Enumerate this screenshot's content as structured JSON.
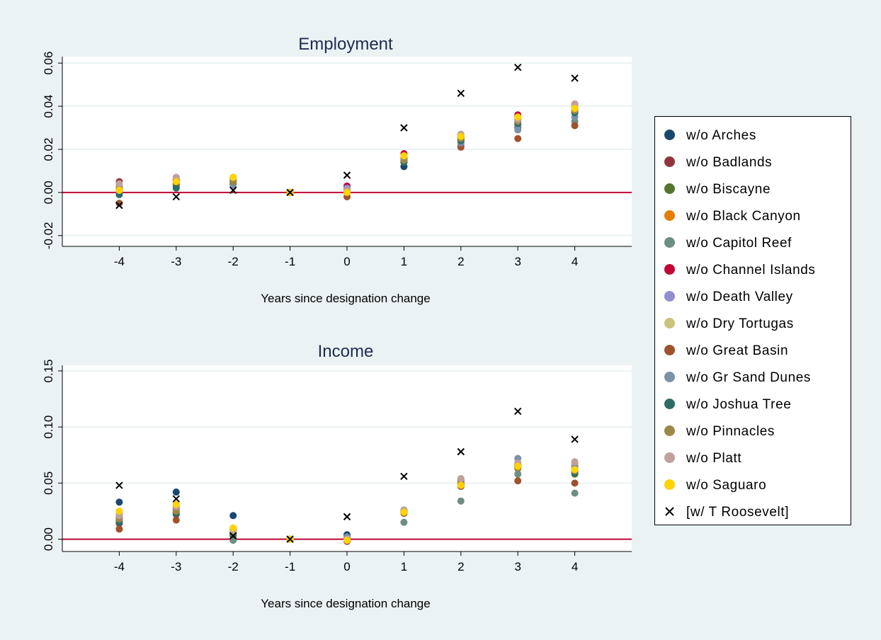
{
  "chart_data": [
    {
      "type": "scatter",
      "title": "Employment",
      "xlabel": "Years since designation change",
      "ylabel": "",
      "x": [
        -4,
        -3,
        -2,
        -1,
        0,
        1,
        2,
        3,
        4
      ],
      "xticks": [
        "-4",
        "-3",
        "-2",
        "-1",
        "0",
        "1",
        "2",
        "3",
        "4"
      ],
      "xlim": [
        -5,
        5
      ],
      "ylim": [
        -0.025,
        0.063
      ],
      "yticks": [
        "-0.02",
        "0.00",
        "0.02",
        "0.04",
        "0.06"
      ],
      "ytick_values": [
        -0.02,
        0,
        0.02,
        0.04,
        0.06
      ],
      "reference_line": 0,
      "grid": true,
      "series": [
        {
          "name": "w/o Arches",
          "values": [
            0.0,
            0.003,
            0.004,
            0.0,
            0.001,
            0.012,
            0.024,
            0.03,
            0.038
          ]
        },
        {
          "name": "w/o Badlands",
          "values": [
            0.005,
            0.006,
            0.005,
            0.0,
            0.002,
            0.016,
            0.025,
            0.031,
            0.04
          ]
        },
        {
          "name": "w/o Biscayne",
          "values": [
            0.001,
            0.004,
            0.004,
            0.0,
            0.0,
            0.014,
            0.024,
            0.032,
            0.037
          ]
        },
        {
          "name": "w/o Black Canyon",
          "values": [
            0.001,
            0.005,
            0.006,
            0.0,
            0.0,
            0.016,
            0.025,
            0.034,
            0.039
          ]
        },
        {
          "name": "w/o Capitol Reef",
          "values": [
            0.0,
            0.004,
            0.005,
            0.0,
            0.001,
            0.015,
            0.022,
            0.031,
            0.033
          ]
        },
        {
          "name": "w/o Channel Islands",
          "values": [
            0.003,
            0.006,
            0.006,
            0.0,
            0.003,
            0.018,
            0.026,
            0.036,
            0.041
          ]
        },
        {
          "name": "w/o Death Valley",
          "values": [
            0.004,
            0.007,
            0.006,
            0.0,
            0.002,
            0.016,
            0.026,
            0.035,
            0.041
          ]
        },
        {
          "name": "w/o Dry Tortugas",
          "values": [
            0.003,
            0.007,
            0.007,
            0.0,
            0.001,
            0.017,
            0.027,
            0.034,
            0.04
          ]
        },
        {
          "name": "w/o Great Basin",
          "values": [
            -0.005,
            0.004,
            0.004,
            0.0,
            -0.002,
            0.015,
            0.021,
            0.025,
            0.031
          ]
        },
        {
          "name": "w/o Gr Sand Dunes",
          "values": [
            0.002,
            0.005,
            0.003,
            0.0,
            0.001,
            0.015,
            0.023,
            0.029,
            0.035
          ]
        },
        {
          "name": "w/o Joshua Tree",
          "values": [
            -0.001,
            0.002,
            0.005,
            0.0,
            0.0,
            0.014,
            0.024,
            0.032,
            0.037
          ]
        },
        {
          "name": "w/o Pinnacles",
          "values": [
            0.002,
            0.005,
            0.005,
            0.0,
            0.0,
            0.015,
            0.025,
            0.033,
            0.038
          ]
        },
        {
          "name": "w/o Platt",
          "values": [
            0.004,
            0.007,
            0.007,
            0.0,
            0.001,
            0.017,
            0.027,
            0.034,
            0.041
          ]
        },
        {
          "name": "w/o Saguaro",
          "values": [
            0.001,
            0.005,
            0.007,
            0.0,
            0.0,
            0.017,
            0.026,
            0.035,
            0.039
          ]
        },
        {
          "name": "[w/ T Roosevelt]",
          "values": [
            -0.006,
            -0.002,
            0.001,
            0.0,
            0.008,
            0.03,
            0.046,
            0.058,
            0.053
          ]
        }
      ]
    },
    {
      "type": "scatter",
      "title": "Income",
      "xlabel": "Years since designation change",
      "ylabel": "",
      "x": [
        -4,
        -3,
        -2,
        -1,
        0,
        1,
        2,
        3,
        4
      ],
      "xticks": [
        "-4",
        "-3",
        "-2",
        "-1",
        "0",
        "1",
        "2",
        "3",
        "4"
      ],
      "xlim": [
        -5,
        5
      ],
      "ylim": [
        -0.011,
        0.155
      ],
      "yticks": [
        "0.00",
        "0.05",
        "0.10",
        "0.15"
      ],
      "ytick_values": [
        0,
        0.05,
        0.1,
        0.15
      ],
      "reference_line": 0,
      "grid": true,
      "series": [
        {
          "name": "w/o Arches",
          "values": [
            0.033,
            0.042,
            0.021,
            0.0,
            0.004,
            0.025,
            0.048,
            0.066,
            0.06
          ]
        },
        {
          "name": "w/o Badlands",
          "values": [
            0.014,
            0.022,
            0.006,
            0.0,
            0.0,
            0.025,
            0.053,
            0.064,
            0.066
          ]
        },
        {
          "name": "w/o Biscayne",
          "values": [
            0.016,
            0.024,
            0.003,
            0.0,
            -0.001,
            0.024,
            0.049,
            0.063,
            0.058
          ]
        },
        {
          "name": "w/o Black Canyon",
          "values": [
            0.021,
            0.028,
            0.008,
            0.0,
            -0.001,
            0.024,
            0.049,
            0.064,
            0.062
          ]
        },
        {
          "name": "w/o Capitol Reef",
          "values": [
            0.017,
            0.025,
            -0.001,
            0.0,
            0.002,
            0.015,
            0.034,
            0.058,
            0.041
          ]
        },
        {
          "name": "w/o Channel Islands",
          "values": [
            0.019,
            0.027,
            0.009,
            0.0,
            0.0,
            0.025,
            0.052,
            0.066,
            0.066
          ]
        },
        {
          "name": "w/o Death Valley",
          "values": [
            0.022,
            0.03,
            0.009,
            0.0,
            0.0,
            0.026,
            0.053,
            0.068,
            0.068
          ]
        },
        {
          "name": "w/o Dry Tortugas",
          "values": [
            0.023,
            0.031,
            0.01,
            0.0,
            0.0,
            0.026,
            0.054,
            0.067,
            0.067
          ]
        },
        {
          "name": "w/o Great Basin",
          "values": [
            0.009,
            0.017,
            0.004,
            0.0,
            -0.002,
            0.023,
            0.047,
            0.052,
            0.05
          ]
        },
        {
          "name": "w/o Gr Sand Dunes",
          "values": [
            0.02,
            0.026,
            0.005,
            0.0,
            0.002,
            0.026,
            0.05,
            0.072,
            0.064
          ]
        },
        {
          "name": "w/o Joshua Tree",
          "values": [
            0.015,
            0.023,
            0.004,
            0.0,
            -0.001,
            0.024,
            0.049,
            0.065,
            0.059
          ]
        },
        {
          "name": "w/o Pinnacles",
          "values": [
            0.018,
            0.025,
            0.006,
            0.0,
            0.0,
            0.025,
            0.05,
            0.065,
            0.061
          ]
        },
        {
          "name": "w/o Platt",
          "values": [
            0.021,
            0.029,
            0.008,
            0.0,
            0.0,
            0.026,
            0.054,
            0.068,
            0.069
          ]
        },
        {
          "name": "w/o Saguaro",
          "values": [
            0.025,
            0.031,
            0.01,
            0.0,
            -0.001,
            0.024,
            0.048,
            0.065,
            0.062
          ]
        },
        {
          "name": "[w/ T Roosevelt]",
          "values": [
            0.048,
            0.036,
            0.003,
            0.0,
            0.02,
            0.056,
            0.078,
            0.114,
            0.089
          ]
        }
      ]
    }
  ],
  "legend": {
    "placement": "right",
    "items": [
      {
        "label": "w/o Arches",
        "color": "#1a476f",
        "marker": "circle"
      },
      {
        "label": "w/o Badlands",
        "color": "#90353b",
        "marker": "circle"
      },
      {
        "label": "w/o Biscayne",
        "color": "#55752f",
        "marker": "circle"
      },
      {
        "label": "w/o Black Canyon",
        "color": "#e37e00",
        "marker": "circle"
      },
      {
        "label": "w/o Capitol Reef",
        "color": "#6e8e84",
        "marker": "circle"
      },
      {
        "label": "w/o Channel Islands",
        "color": "#c10534",
        "marker": "circle"
      },
      {
        "label": "w/o Death Valley",
        "color": "#938dd2",
        "marker": "circle"
      },
      {
        "label": "w/o Dry Tortugas",
        "color": "#cac27e",
        "marker": "circle"
      },
      {
        "label": "w/o Great Basin",
        "color": "#a0522d",
        "marker": "circle"
      },
      {
        "label": "w/o Gr Sand Dunes",
        "color": "#7b92a8",
        "marker": "circle"
      },
      {
        "label": "w/o Joshua Tree",
        "color": "#2d6d66",
        "marker": "circle"
      },
      {
        "label": "w/o Pinnacles",
        "color": "#9c8847",
        "marker": "circle"
      },
      {
        "label": "w/o Platt",
        "color": "#bfa19c",
        "marker": "circle"
      },
      {
        "label": "w/o Saguaro",
        "color": "#ffd200",
        "marker": "circle"
      },
      {
        "label": "[w/ T Roosevelt]",
        "color": "#000000",
        "marker": "x"
      }
    ]
  },
  "colors": {
    "background": "#eaf2f3",
    "plot_area": "#ffffff",
    "gridline": "#eaf2f3",
    "reference_line": "#c10534",
    "title_text": "#1e2b4f"
  }
}
